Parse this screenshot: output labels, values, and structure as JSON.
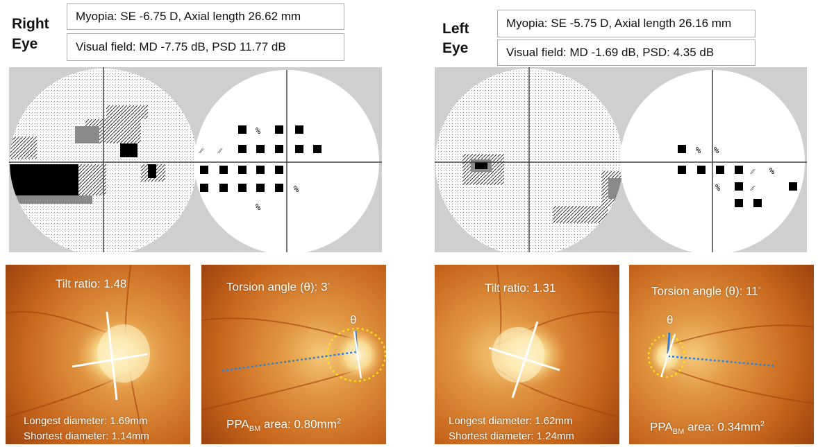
{
  "colors": {
    "panel_bg": "#cfcfcf",
    "fundus_orange": "#d9771f",
    "disc_yellow": "#f2d08a",
    "ellipse_yellow": "#ffe31a",
    "line_blue": "#2f7fd6"
  },
  "right_eye": {
    "label_line1": "Right",
    "label_line2": "Eye",
    "myopia": "Myopia: SE -6.75 D, Axial length 26.62 mm",
    "visual_field": "Visual field: MD -7.75 dB, PSD 11.77 dB",
    "tilt_ratio": "Tilt ratio: 1.48",
    "longest_diameter": "Longest diameter: 1.69mm",
    "shortest_diameter": "Shortest diameter: 1.14mm",
    "torsion_label": "Torsion angle (θ): 3",
    "torsion_degree_mark": "◦",
    "theta": "θ",
    "ppa_prefix": "PPA",
    "ppa_sub": "BM",
    "ppa_area": " area: 0.80mm",
    "ppa_sup": "2"
  },
  "left_eye": {
    "label_line1": "Left",
    "label_line2": "Eye",
    "myopia": "Myopia: SE -5.75 D, Axial length 26.16 mm",
    "visual_field": "Visual field: MD -1.69 dB, PSD: 4.35 dB",
    "tilt_ratio": "Tilt ratio: 1.31",
    "longest_diameter": "Longest diameter: 1.62mm",
    "shortest_diameter": "Shortest diameter: 1.24mm",
    "torsion_label": "Torsion angle (θ): 11",
    "torsion_degree_mark": "◦",
    "theta": "θ",
    "ppa_prefix": "PPA",
    "ppa_sub": "BM",
    "ppa_area": " area: 0.34mm",
    "ppa_sup": "2"
  }
}
